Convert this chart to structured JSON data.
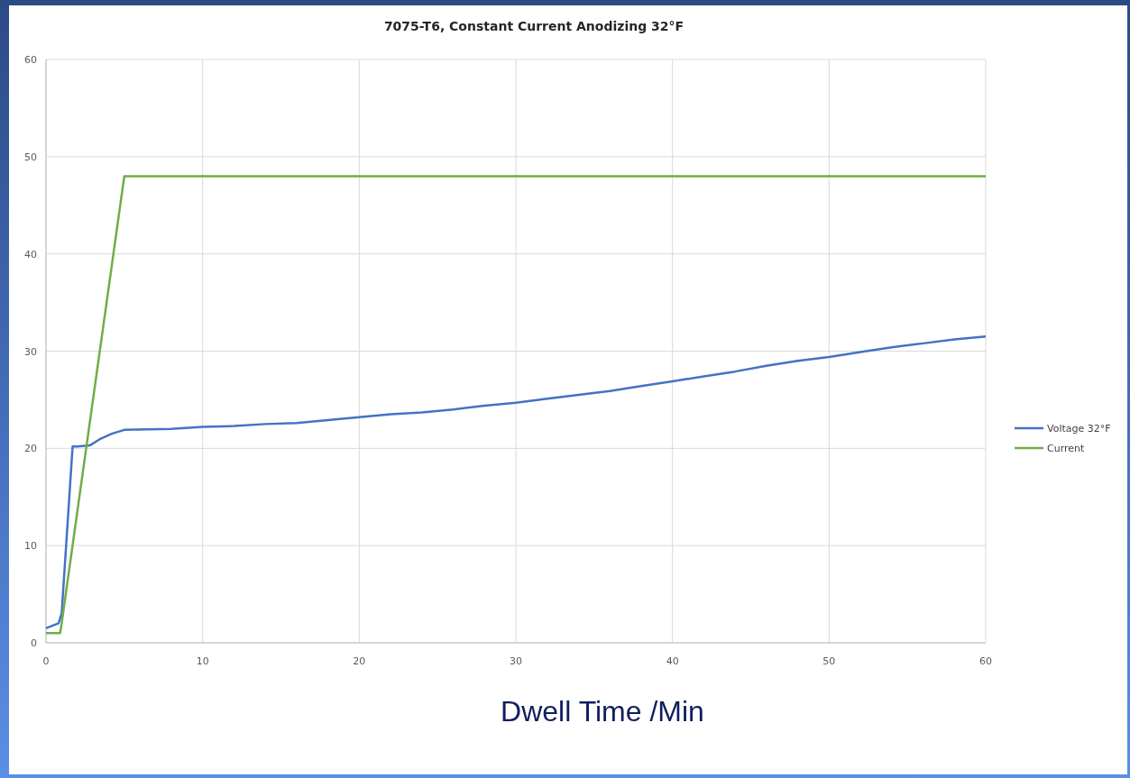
{
  "chart_data": {
    "type": "line",
    "title": "7075-T6, Constant Current Anodizing 32°F",
    "xlabel": "Dwell Time /Min",
    "xlim": [
      0,
      60
    ],
    "xticks": [
      0,
      10,
      20,
      30,
      40,
      50,
      60
    ],
    "ylim": [
      0,
      60
    ],
    "yticks": [
      0,
      10,
      20,
      30,
      40,
      50,
      60
    ],
    "grid": true,
    "legend": "right",
    "marker": "none",
    "series": [
      {
        "name": "Voltage 32°F",
        "color": "#4472c4",
        "x": [
          0,
          0.8,
          1.0,
          1.7,
          2.0,
          2.8,
          3.5,
          4.2,
          5,
          8,
          10,
          12,
          14,
          16,
          18,
          20,
          22,
          24,
          26,
          28,
          30,
          32,
          34,
          36,
          38,
          40,
          42,
          44,
          46,
          48,
          50,
          52,
          54,
          56,
          58,
          60
        ],
        "values": [
          1.5,
          2.0,
          3,
          20.2,
          20.2,
          20.3,
          21.0,
          21.5,
          21.9,
          22.0,
          22.2,
          22.3,
          22.5,
          22.6,
          22.9,
          23.2,
          23.5,
          23.7,
          24.0,
          24.4,
          24.7,
          25.1,
          25.5,
          25.9,
          26.4,
          26.9,
          27.4,
          27.9,
          28.5,
          29.0,
          29.4,
          29.9,
          30.4,
          30.8,
          31.2,
          31.5
        ]
      },
      {
        "name": "Current",
        "color": "#70ad47",
        "x": [
          0,
          0.9,
          1.0,
          5.0,
          60
        ],
        "values": [
          1,
          1,
          2,
          48,
          48
        ]
      }
    ]
  }
}
